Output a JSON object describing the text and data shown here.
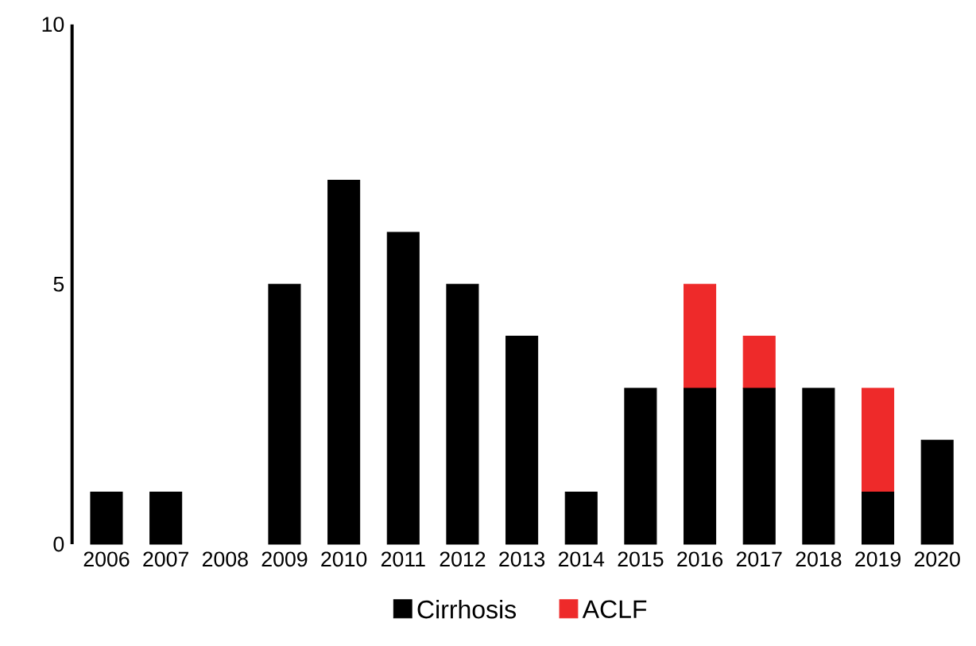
{
  "chart_data": {
    "type": "bar",
    "stacked": true,
    "categories": [
      "2006",
      "2007",
      "2008",
      "2009",
      "2010",
      "2011",
      "2012",
      "2013",
      "2014",
      "2015",
      "2016",
      "2017",
      "2018",
      "2019",
      "2020"
    ],
    "series": [
      {
        "name": "Cirrhosis",
        "color": "#000000",
        "values": [
          1,
          1,
          0,
          5,
          7,
          6,
          5,
          4,
          1,
          3,
          3,
          3,
          3,
          1,
          2
        ]
      },
      {
        "name": "ACLF",
        "color": "#ee2a2a",
        "values": [
          0,
          0,
          0,
          0,
          0,
          0,
          0,
          0,
          0,
          0,
          2,
          1,
          0,
          2,
          0
        ]
      }
    ],
    "ylim": [
      0,
      10
    ],
    "yticks": [
      0,
      5,
      10
    ],
    "legend": "bottom"
  }
}
